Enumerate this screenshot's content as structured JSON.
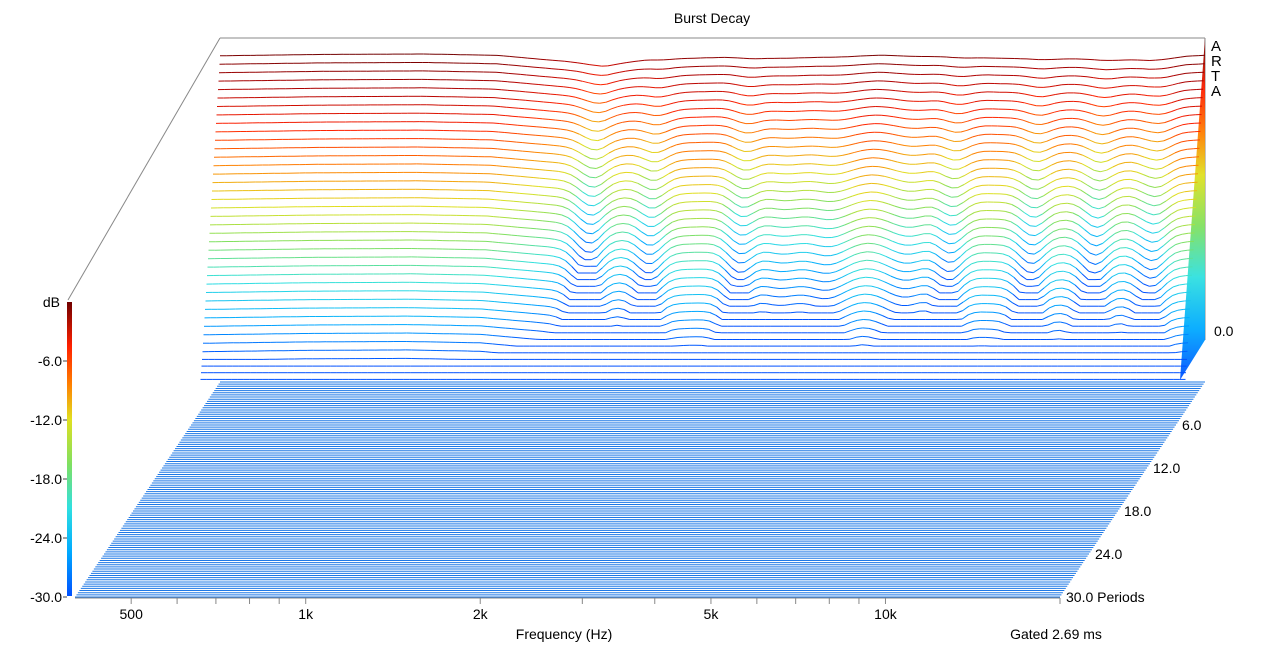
{
  "chart_data": {
    "type": "waterfall",
    "title": "Burst Decay",
    "xlabel": "Frequency (Hz)",
    "x_scale": "log",
    "x_range_hz": [
      400,
      20000
    ],
    "x_ticks": [
      {
        "value": 500,
        "label": "500"
      },
      {
        "value": 1000,
        "label": "1k"
      },
      {
        "value": 2000,
        "label": "2k"
      },
      {
        "value": 5000,
        "label": "5k"
      },
      {
        "value": 10000,
        "label": "10k"
      }
    ],
    "depth_label": "Periods",
    "depth_ticks": [
      {
        "value": 6,
        "label": "6.0"
      },
      {
        "value": 12,
        "label": "12.0"
      },
      {
        "value": 18,
        "label": "18.0"
      },
      {
        "value": 24,
        "label": "24.0"
      },
      {
        "value": 30,
        "label": "30.0 Periods"
      }
    ],
    "z_unit": "dB",
    "z_range_db": [
      -30,
      0
    ],
    "z_ticks": [
      "0.0",
      "-6.0",
      "-12.0",
      "-18.0",
      "-24.0",
      "-30.0"
    ],
    "colorbar_title": "dB",
    "gated_note": "Gated 2.69 ms",
    "brand": [
      "A",
      "R",
      "T",
      "A"
    ],
    "colormap": [
      "#0050ff",
      "#00aaff",
      "#30e0e0",
      "#80e060",
      "#e0e020",
      "#ff8000",
      "#ff2000",
      "#b00000",
      "#700000"
    ],
    "series_count": 40,
    "front_response_db": [
      {
        "hz": 400,
        "db": -0.8
      },
      {
        "hz": 600,
        "db": -0.2
      },
      {
        "hz": 900,
        "db": 0.0
      },
      {
        "hz": 1200,
        "db": -0.6
      },
      {
        "hz": 1600,
        "db": -3.5
      },
      {
        "hz": 1850,
        "db": -5.2
      },
      {
        "hz": 2200,
        "db": -2.4
      },
      {
        "hz": 3000,
        "db": -1.5
      },
      {
        "hz": 3600,
        "db": -1.8
      },
      {
        "hz": 4200,
        "db": -1.4
      },
      {
        "hz": 5500,
        "db": -0.5
      },
      {
        "hz": 7000,
        "db": -1.0
      },
      {
        "hz": 9000,
        "db": -2.0
      },
      {
        "hz": 12000,
        "db": -2.2
      },
      {
        "hz": 16000,
        "db": -2.8
      },
      {
        "hz": 18500,
        "db": -1.0
      },
      {
        "hz": 20000,
        "db": -0.6
      }
    ],
    "decay_notches": [
      {
        "hz": 1800,
        "depth_db": -28,
        "width": 0.02
      },
      {
        "hz": 2300,
        "depth_db": -26,
        "width": 0.02
      },
      {
        "hz": 3300,
        "depth_db": -26,
        "width": 0.02
      },
      {
        "hz": 3900,
        "depth_db": -14,
        "width": 0.03
      },
      {
        "hz": 4700,
        "depth_db": -18,
        "width": 0.03
      },
      {
        "hz": 6400,
        "depth_db": -17,
        "width": 0.03
      },
      {
        "hz": 7600,
        "depth_db": -26,
        "width": 0.02
      },
      {
        "hz": 10500,
        "depth_db": -26,
        "width": 0.02
      },
      {
        "hz": 13500,
        "depth_db": -26,
        "width": 0.02
      },
      {
        "hz": 17000,
        "depth_db": -22,
        "width": 0.02
      }
    ]
  }
}
